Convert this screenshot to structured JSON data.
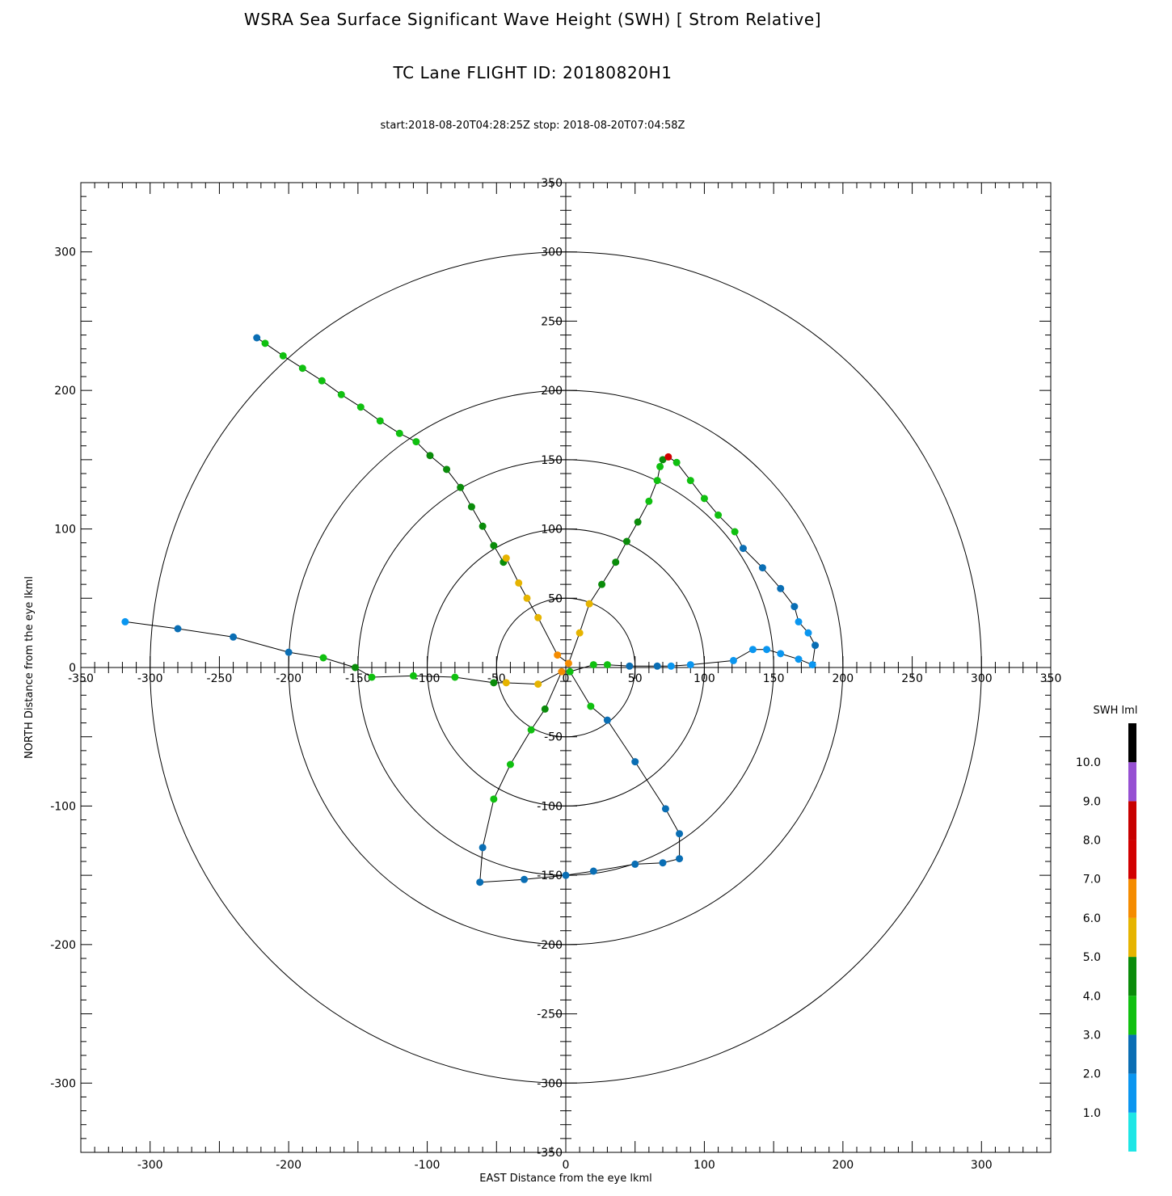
{
  "chart_data": {
    "type": "scatter",
    "title": "WSRA Sea Surface Significant Wave Height (SWH) [ Strom Relative]",
    "subtitle": "TC Lane FLIGHT ID: 20180820H1",
    "time_range": "start:2018-08-20T04:28:25Z stop: 2018-08-20T07:04:58Z",
    "xlabel": "EAST Distance from the eye lkml",
    "ylabel": "NORTH Distance from the eye lkml",
    "xlim": [
      -350,
      350
    ],
    "ylim": [
      -350,
      350
    ],
    "outer_ticks": [
      -300,
      -200,
      -100,
      0,
      100,
      200,
      300
    ],
    "axis_ticks": [
      -350,
      -300,
      -250,
      -200,
      -150,
      -100,
      -50,
      0,
      50,
      100,
      150,
      200,
      250,
      300,
      350
    ],
    "range_rings": [
      50,
      100,
      150,
      200,
      300
    ],
    "colorbar": {
      "title": "SWH lml",
      "labels": [
        "10.0",
        "9.0",
        "8.0",
        "7.0",
        "6.0",
        "5.0",
        "4.0",
        "3.0",
        "2.0",
        "1.0"
      ],
      "bands": [
        {
          "min": 0,
          "max": 1,
          "color": "#1ee6e6"
        },
        {
          "min": 1,
          "max": 2,
          "color": "#0a96f0"
        },
        {
          "min": 2,
          "max": 3,
          "color": "#0a6eb4"
        },
        {
          "min": 3,
          "max": 4,
          "color": "#10c010"
        },
        {
          "min": 4,
          "max": 5,
          "color": "#0a8c0a"
        },
        {
          "min": 5,
          "max": 6,
          "color": "#e6b400"
        },
        {
          "min": 6,
          "max": 7,
          "color": "#f58c00"
        },
        {
          "min": 7,
          "max": 8,
          "color": "#d20000"
        },
        {
          "min": 8,
          "max": 9,
          "color": "#c80000"
        },
        {
          "min": 9,
          "max": 10,
          "color": "#9650d2"
        },
        {
          "min": 10,
          "max": 11,
          "color": "#000000"
        }
      ]
    },
    "track": [
      {
        "x": -223,
        "y": 238,
        "swh": 2.5
      },
      {
        "x": -217,
        "y": 234,
        "swh": 3.5
      },
      {
        "x": -204,
        "y": 225,
        "swh": 3.5
      },
      {
        "x": -190,
        "y": 216,
        "swh": 3.5
      },
      {
        "x": -176,
        "y": 207,
        "swh": 3.5
      },
      {
        "x": -162,
        "y": 197,
        "swh": 3.5
      },
      {
        "x": -148,
        "y": 188,
        "swh": 3.5
      },
      {
        "x": -134,
        "y": 178,
        "swh": 3.5
      },
      {
        "x": -120,
        "y": 169,
        "swh": 3.5
      },
      {
        "x": -108,
        "y": 163,
        "swh": 3.5
      },
      {
        "x": -98,
        "y": 153,
        "swh": 4.5
      },
      {
        "x": -86,
        "y": 143,
        "swh": 4.5
      },
      {
        "x": -76,
        "y": 130,
        "swh": 4.5
      },
      {
        "x": -68,
        "y": 116,
        "swh": 4.5
      },
      {
        "x": -60,
        "y": 102,
        "swh": 4.5
      },
      {
        "x": -52,
        "y": 88,
        "swh": 4.5
      },
      {
        "x": -45,
        "y": 76,
        "swh": 4.5
      },
      {
        "x": -43,
        "y": 79,
        "swh": 5.5
      },
      {
        "x": -34,
        "y": 61,
        "swh": 5.5
      },
      {
        "x": -28,
        "y": 50,
        "swh": 5.5
      },
      {
        "x": -20,
        "y": 36,
        "swh": 5.5
      },
      {
        "x": -6,
        "y": 9,
        "swh": 6.5
      },
      {
        "x": 2,
        "y": 3,
        "swh": 6.5
      },
      {
        "x": 10,
        "y": 25,
        "swh": 5.5
      },
      {
        "x": 17,
        "y": 46,
        "swh": 5.5
      },
      {
        "x": 26,
        "y": 60,
        "swh": 4.5
      },
      {
        "x": 36,
        "y": 76,
        "swh": 4.5
      },
      {
        "x": 44,
        "y": 91,
        "swh": 4.5
      },
      {
        "x": 52,
        "y": 105,
        "swh": 4.5
      },
      {
        "x": 60,
        "y": 120,
        "swh": 3.5
      },
      {
        "x": 66,
        "y": 135,
        "swh": 3.5
      },
      {
        "x": 68,
        "y": 145,
        "swh": 3.5
      },
      {
        "x": 70,
        "y": 150,
        "swh": 4.5
      },
      {
        "x": 74,
        "y": 152,
        "swh": 7.5
      },
      {
        "x": 80,
        "y": 148,
        "swh": 3.5
      },
      {
        "x": 90,
        "y": 135,
        "swh": 3.5
      },
      {
        "x": 100,
        "y": 122,
        "swh": 3.5
      },
      {
        "x": 110,
        "y": 110,
        "swh": 3.5
      },
      {
        "x": 122,
        "y": 98,
        "swh": 3.5
      },
      {
        "x": 128,
        "y": 86,
        "swh": 2.5
      },
      {
        "x": 142,
        "y": 72,
        "swh": 2.5
      },
      {
        "x": 155,
        "y": 57,
        "swh": 2.5
      },
      {
        "x": 165,
        "y": 44,
        "swh": 2.5
      },
      {
        "x": 168,
        "y": 33,
        "swh": 1.5
      },
      {
        "x": 175,
        "y": 25,
        "swh": 1.5
      },
      {
        "x": 180,
        "y": 16,
        "swh": 2.5
      },
      {
        "x": 178,
        "y": 2,
        "swh": 1.5
      },
      {
        "x": 168,
        "y": 6,
        "swh": 1.5
      },
      {
        "x": 155,
        "y": 10,
        "swh": 1.5
      },
      {
        "x": 145,
        "y": 13,
        "swh": 1.5
      },
      {
        "x": 135,
        "y": 13,
        "swh": 1.5
      },
      {
        "x": 121,
        "y": 5,
        "swh": 1.5
      },
      {
        "x": 90,
        "y": 2,
        "swh": 1.5
      },
      {
        "x": 76,
        "y": 1,
        "swh": 1.5
      },
      {
        "x": 66,
        "y": 1,
        "swh": 2.5
      },
      {
        "x": 46,
        "y": 1,
        "swh": 2.5
      },
      {
        "x": 30,
        "y": 2,
        "swh": 3.5
      },
      {
        "x": 20,
        "y": 2,
        "swh": 3.5
      },
      {
        "x": 3,
        "y": -3,
        "swh": 3.5
      },
      {
        "x": 18,
        "y": -28,
        "swh": 3.5
      },
      {
        "x": 30,
        "y": -38,
        "swh": 2.5
      },
      {
        "x": 50,
        "y": -68,
        "swh": 2.5
      },
      {
        "x": 72,
        "y": -102,
        "swh": 2.5
      },
      {
        "x": 82,
        "y": -120,
        "swh": 2.5
      },
      {
        "x": 82,
        "y": -138,
        "swh": 2.5
      },
      {
        "x": 70,
        "y": -141,
        "swh": 2.5
      },
      {
        "x": 50,
        "y": -142,
        "swh": 2.5
      },
      {
        "x": 20,
        "y": -147,
        "swh": 2.5
      },
      {
        "x": 0,
        "y": -150,
        "swh": 2.5
      },
      {
        "x": -30,
        "y": -153,
        "swh": 2.5
      },
      {
        "x": -62,
        "y": -155,
        "swh": 2.5
      },
      {
        "x": -60,
        "y": -130,
        "swh": 2.5
      },
      {
        "x": -52,
        "y": -95,
        "swh": 3.5
      },
      {
        "x": -40,
        "y": -70,
        "swh": 3.5
      },
      {
        "x": -25,
        "y": -45,
        "swh": 3.5
      },
      {
        "x": -15,
        "y": -30,
        "swh": 4.5
      },
      {
        "x": -3,
        "y": -3,
        "swh": 6.5
      },
      {
        "x": -20,
        "y": -12,
        "swh": 5.5
      },
      {
        "x": -43,
        "y": -11,
        "swh": 5.5
      },
      {
        "x": -52,
        "y": -11,
        "swh": 4.5
      },
      {
        "x": -80,
        "y": -7,
        "swh": 3.5
      },
      {
        "x": -110,
        "y": -6,
        "swh": 3.5
      },
      {
        "x": -140,
        "y": -7,
        "swh": 3.5
      },
      {
        "x": -152,
        "y": 0,
        "swh": 4.5
      },
      {
        "x": -175,
        "y": 7,
        "swh": 3.5
      },
      {
        "x": -200,
        "y": 11,
        "swh": 2.5
      },
      {
        "x": -240,
        "y": 22,
        "swh": 2.5
      },
      {
        "x": -280,
        "y": 28,
        "swh": 2.5
      },
      {
        "x": -318,
        "y": 33,
        "swh": 1.5
      }
    ]
  }
}
